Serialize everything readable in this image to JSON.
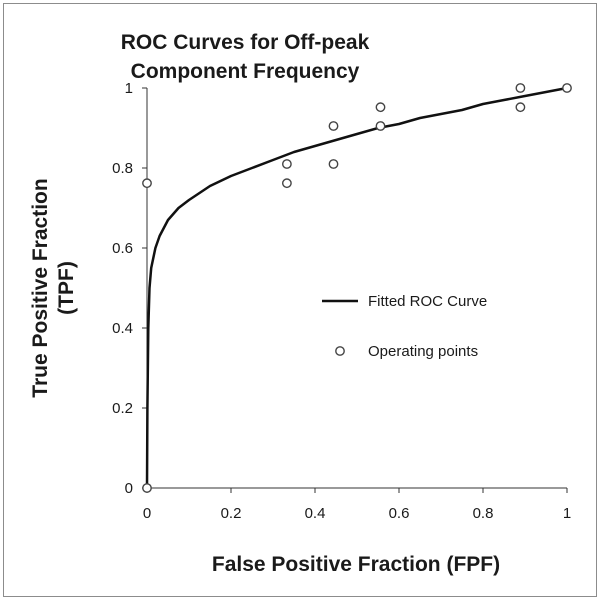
{
  "chart_data": {
    "type": "line",
    "title_lines": [
      "ROC Curves for Off-peak",
      "Component Frequency"
    ],
    "xlabel": "False Positive Fraction (FPF)",
    "ylabel_lines": [
      "True Positive Fraction",
      "(TPF)"
    ],
    "xlim": [
      0,
      1
    ],
    "ylim": [
      0,
      1
    ],
    "x_ticks": [
      "0",
      "0.2",
      "0.4",
      "0.6",
      "0.8",
      "1"
    ],
    "y_ticks": [
      "0",
      "0.2",
      "0.4",
      "0.6",
      "0.8",
      "1"
    ],
    "grid": false,
    "legend_position": "right",
    "colors": {
      "curve": "#111111",
      "points": "#444444",
      "axis": "#333333"
    },
    "series": [
      {
        "name": "Fitted ROC Curve",
        "kind": "line",
        "x": [
          0,
          0.001,
          0.003,
          0.006,
          0.01,
          0.02,
          0.03,
          0.05,
          0.075,
          0.1,
          0.15,
          0.2,
          0.25,
          0.3,
          0.35,
          0.4,
          0.45,
          0.5,
          0.55,
          0.6,
          0.65,
          0.7,
          0.75,
          0.8,
          0.85,
          0.9,
          0.95,
          1.0
        ],
        "y": [
          0,
          0.2,
          0.4,
          0.5,
          0.55,
          0.6,
          0.63,
          0.67,
          0.7,
          0.72,
          0.755,
          0.78,
          0.8,
          0.82,
          0.84,
          0.855,
          0.87,
          0.885,
          0.9,
          0.91,
          0.925,
          0.935,
          0.945,
          0.96,
          0.97,
          0.98,
          0.99,
          1.0
        ]
      },
      {
        "name": "Operating points",
        "kind": "scatter",
        "x": [
          0,
          0,
          0.333,
          0.333,
          0.444,
          0.444,
          0.556,
          0.556,
          0.889,
          0.889,
          1.0
        ],
        "y": [
          0,
          0.762,
          0.762,
          0.81,
          0.81,
          0.905,
          0.905,
          0.952,
          0.952,
          1.0,
          1.0
        ]
      }
    ]
  }
}
